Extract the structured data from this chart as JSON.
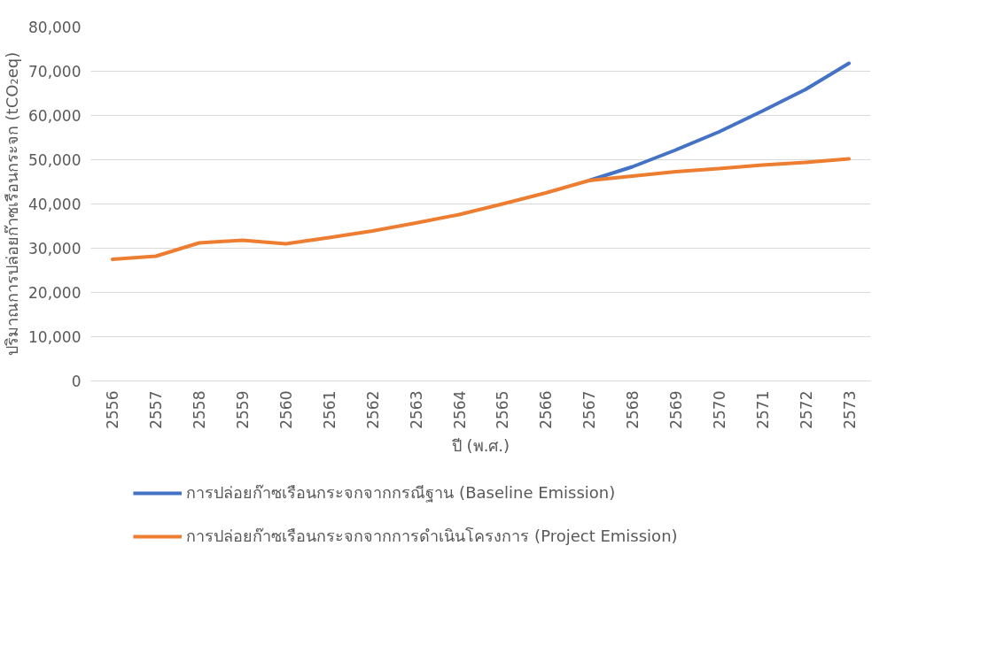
{
  "chart_data": {
    "type": "line",
    "xlabel": "ปี (พ.ศ.)",
    "ylabel": "ปริมาณการปล่อยก๊าซเรือนกระจก (tCO₂eq)",
    "categories": [
      "2556",
      "2557",
      "2558",
      "2559",
      "2560",
      "2561",
      "2562",
      "2563",
      "2564",
      "2565",
      "2566",
      "2567",
      "2568",
      "2569",
      "2570",
      "2571",
      "2572",
      "2573"
    ],
    "series": [
      {
        "name": "การปล่อยก๊าซเรือนกระจกจากกรณีฐาน (Baseline Emission)",
        "color": "#4472c4",
        "values": [
          null,
          null,
          null,
          null,
          null,
          null,
          null,
          null,
          null,
          null,
          null,
          45300,
          48400,
          52200,
          56300,
          61000,
          65900,
          71800
        ]
      },
      {
        "name": "การปล่อยก๊าซเรือนกระจกจากการดำเนินโครงการ (Project Emission)",
        "color": "#ed7d31",
        "values": [
          27500,
          28200,
          31200,
          31800,
          31000,
          32400,
          33900,
          35700,
          37600,
          40000,
          42500,
          45300,
          46300,
          47300,
          48000,
          48800,
          49400,
          50200
        ]
      }
    ],
    "ylim": [
      0,
      80000
    ],
    "yticks": [
      {
        "value": 0,
        "label": "0"
      },
      {
        "value": 10000,
        "label": "10,000"
      },
      {
        "value": 20000,
        "label": "20,000"
      },
      {
        "value": 30000,
        "label": "30,000"
      },
      {
        "value": 40000,
        "label": "40,000"
      },
      {
        "value": 50000,
        "label": "50,000"
      },
      {
        "value": 60000,
        "label": "60,000"
      },
      {
        "value": 70000,
        "label": "70,000"
      },
      {
        "value": 80000,
        "label": "80,000"
      }
    ],
    "grid": "y",
    "legend": "bottom",
    "marker": "none",
    "line_style": "solid"
  }
}
